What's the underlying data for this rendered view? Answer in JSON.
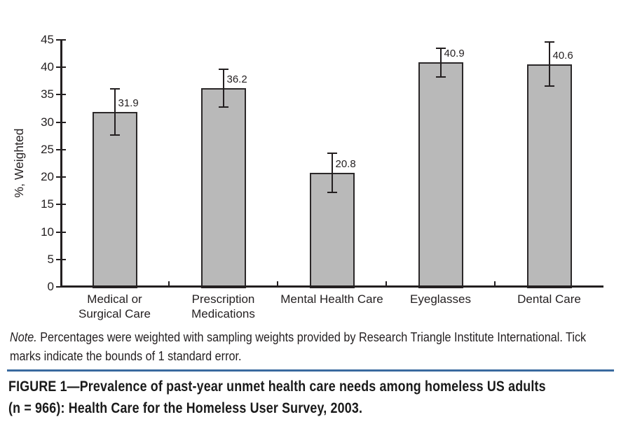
{
  "figure": {
    "note": {
      "lead": "Note.",
      "text": "Percentages were weighted with sampling weights provided by Research Triangle Institute International. Tick marks indicate the bounds of 1 standard error."
    },
    "caption": {
      "lines": [
        "FIGURE 1—Prevalence of past-year unmet health care needs among homeless US adults",
        "(n = 966): Health Care for the Homeless User Survey, 2003."
      ]
    },
    "rule_color": "#3a6a9f"
  },
  "chart_data": {
    "type": "bar",
    "title": "",
    "xlabel": "",
    "ylabel": "%, Weighted",
    "ylim": [
      0,
      45
    ],
    "yticks": [
      0,
      5,
      10,
      15,
      20,
      25,
      30,
      35,
      40,
      45
    ],
    "categories": [
      "Medical or\nSurgical Care",
      "Prescription\nMedications",
      "Mental Health Care",
      "Eyeglasses",
      "Dental Care"
    ],
    "values": [
      31.9,
      36.2,
      20.8,
      40.9,
      40.6
    ],
    "standard_errors": [
      4.2,
      3.5,
      3.6,
      2.6,
      4.0
    ],
    "error_bar_meaning": "1 standard error",
    "grid": false,
    "legend": null,
    "bar_fill": "#b9b9b9",
    "bar_border": "#2b2829",
    "axis_color": "#231f20"
  }
}
